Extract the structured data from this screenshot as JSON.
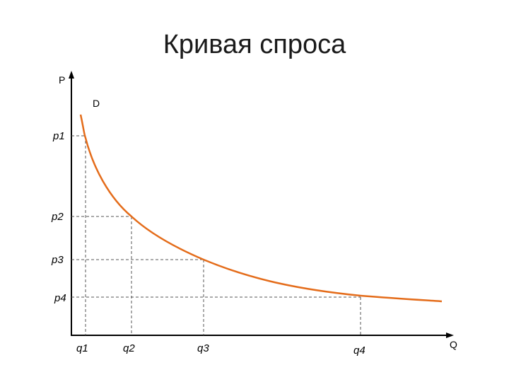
{
  "slide": {
    "title": "Кривая спроса"
  },
  "diagram": {
    "y_axis_label": "P",
    "x_axis_label": "Q",
    "curve_label": "D",
    "curve_color": "#e46c1a",
    "price_labels": [
      "p1",
      "p2",
      "p3",
      "p4"
    ],
    "quantity_labels": [
      "q1",
      "q2",
      "q3",
      "q4"
    ]
  }
}
